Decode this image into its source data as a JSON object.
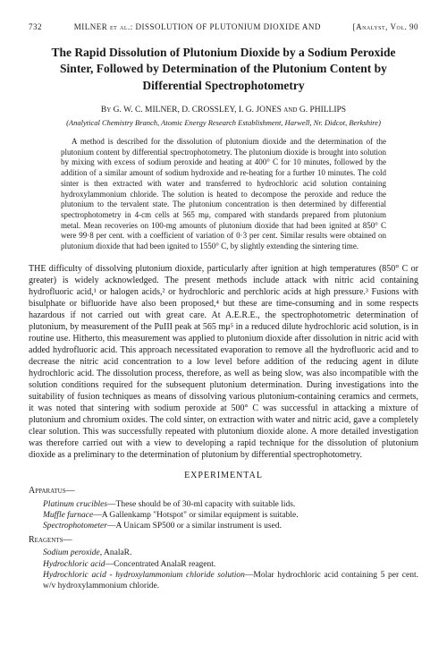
{
  "runningHead": {
    "pageNum": "732",
    "left": "MILNER et al.: DISSOLUTION OF PLUTONIUM DIOXIDE AND",
    "right": "[Analyst, Vol. 90"
  },
  "title": "The Rapid Dissolution of Plutonium Dioxide by a Sodium Peroxide Sinter, Followed by Determination of the Plutonium Content by Differential Spectrophotometry",
  "byline": "By G. W. C. MILNER, D. CROSSLEY, I. G. JONES and G. PHILLIPS",
  "affiliation": "(Analytical Chemistry Branch, Atomic Energy Research Establishment, Harwell, Nr. Didcot, Berkshire)",
  "abstract": "A method is described for the dissolution of plutonium dioxide and the determination of the plutonium content by differential spectrophotometry. The plutonium dioxide is brought into solution by mixing with excess of sodium peroxide and heating at 400° C for 10 minutes, followed by the addition of a similar amount of sodium hydroxide and re-heating for a further 10 minutes. The cold sinter is then extracted with water and transferred to hydrochloric acid solution containing hydroxylammonium chloride. The solution is heated to decompose the peroxide and reduce the plutonium to the tervalent state. The plutonium concentration is then determined by differential spectrophotometry in 4-cm cells at 565 mμ, compared with standards prepared from plutonium metal. Mean recoveries on 100-mg amounts of plutonium dioxide that had been ignited at 850° C were 99·8 per cent. with a coefficient of variation of 0·3 per cent. Similar results were obtained on plutonium dioxide that had been ignited to 1550° C, by slightly extending the sintering time.",
  "bodyPara": "THE difficulty of dissolving plutonium dioxide, particularly after ignition at high temperatures (850° C or greater) is widely acknowledged. The present methods include attack with nitric acid containing hydrofluoric acid,¹ or halogen acids,² or hydrochloric and perchloric acids at high pressure.³ Fusions with bisulphate or bifluoride have also been proposed,⁴ but these are time-consuming and in some respects hazardous if not carried out with great care. At A.E.R.E., the spectrophotometric determination of plutonium, by measurement of the PuIII peak at 565 mμ⁵ in a reduced dilute hydrochloric acid solution, is in routine use. Hitherto, this measurement was applied to plutonium dioxide after dissolution in nitric acid with added hydrofluoric acid. This approach necessitated evaporation to remove all the hydrofluoric acid and to decrease the nitric acid concentration to a low level before addition of the reducing agent in dilute hydrochloric acid. The dissolution process, therefore, as well as being slow, was also incompatible with the solution conditions required for the subsequent plutonium determination. During investigations into the suitability of fusion techniques as means of dissolving various plutonium-containing ceramics and cermets, it was noted that sintering with sodium peroxide at 500° C was successful in attacking a mixture of plutonium and chromium oxides. The cold sinter, on extraction with water and nitric acid, gave a completely clear solution. This was successfully repeated with plutonium dioxide alone. A more detailed investigation was therefore carried out with a view to developing a rapid technique for the dissolution of plutonium dioxide as a preliminary to the determination of plutonium by differential spectrophotometry.",
  "sectionHead": "EXPERIMENTAL",
  "apparatus": {
    "heading": "Apparatus—",
    "items": [
      {
        "name": "Platinum crucibles",
        "desc": "—These should be of 30-ml capacity with suitable lids."
      },
      {
        "name": "Muffle furnace",
        "desc": "—A Gallenkamp \"Hotspot\" or similar equipment is suitable."
      },
      {
        "name": "Spectrophotometer",
        "desc": "—A Unicam SP500 or a similar instrument is used."
      }
    ]
  },
  "reagents": {
    "heading": "Reagents—",
    "items": [
      {
        "name": "Sodium peroxide",
        "desc": ", AnalaR."
      },
      {
        "name": "Hydrochloric acid",
        "desc": "—Concentrated AnalaR reagent."
      },
      {
        "name": "Hydrochloric acid - hydroxylammonium chloride solution",
        "desc": "—Molar hydrochloric acid containing 5 per cent. w/v hydroxylammonium chloride."
      }
    ]
  }
}
